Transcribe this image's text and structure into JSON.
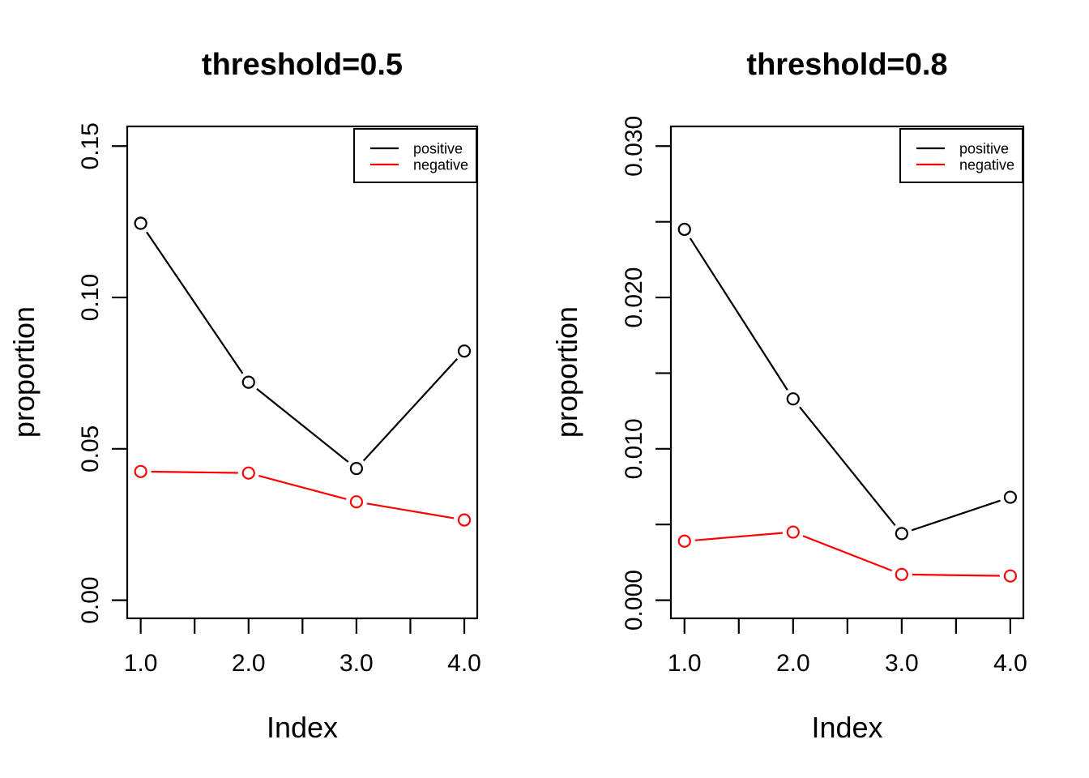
{
  "figure": {
    "background": "#ffffff",
    "series_colors": {
      "positive": "#000000",
      "negative": "#ff0000"
    }
  },
  "chart_data": [
    {
      "type": "line",
      "title": "threshold=0.5",
      "xlabel": "Index",
      "ylabel": "proportion",
      "x": [
        1,
        2,
        3,
        4
      ],
      "series": [
        {
          "name": "positive",
          "color": "#000000",
          "values": [
            0.1245,
            0.072,
            0.0435,
            0.0823
          ]
        },
        {
          "name": "negative",
          "color": "#ff0000",
          "values": [
            0.0425,
            0.042,
            0.0325,
            0.0265
          ]
        }
      ],
      "xlim": [
        0.875,
        4.12
      ],
      "ylim": [
        -0.006,
        0.1565
      ],
      "xticks": {
        "values": [
          1,
          1.5,
          2,
          2.5,
          3,
          3.5,
          4
        ],
        "labels": [
          "1.0",
          "",
          "2.0",
          "",
          "3.0",
          "",
          "4.0"
        ]
      },
      "yticks": {
        "values": [
          0,
          0.05,
          0.1,
          0.15
        ],
        "labels": [
          "0.00",
          "0.05",
          "0.10",
          "0.15"
        ]
      },
      "legend": {
        "position": "topright",
        "entries": [
          "positive",
          "negative"
        ]
      },
      "grid": false,
      "marker": "open-circle"
    },
    {
      "type": "line",
      "title": "threshold=0.8",
      "xlabel": "Index",
      "ylabel": "proportion",
      "x": [
        1,
        2,
        3,
        4
      ],
      "series": [
        {
          "name": "positive",
          "color": "#000000",
          "values": [
            0.0245,
            0.0133,
            0.0044,
            0.0068
          ]
        },
        {
          "name": "negative",
          "color": "#ff0000",
          "values": [
            0.0039,
            0.0045,
            0.0017,
            0.0016
          ]
        }
      ],
      "xlim": [
        0.875,
        4.12
      ],
      "ylim": [
        -0.0012,
        0.0313
      ],
      "xticks": {
        "values": [
          1,
          1.5,
          2,
          2.5,
          3,
          3.5,
          4
        ],
        "labels": [
          "1.0",
          "",
          "2.0",
          "",
          "3.0",
          "",
          "4.0"
        ]
      },
      "yticks": {
        "values": [
          0,
          0.005,
          0.01,
          0.015,
          0.02,
          0.025,
          0.03
        ],
        "labels": [
          "0.000",
          "",
          "0.010",
          "",
          "0.020",
          "",
          "0.030"
        ]
      },
      "legend": {
        "position": "topright",
        "entries": [
          "positive",
          "negative"
        ]
      },
      "grid": false,
      "marker": "open-circle"
    }
  ]
}
